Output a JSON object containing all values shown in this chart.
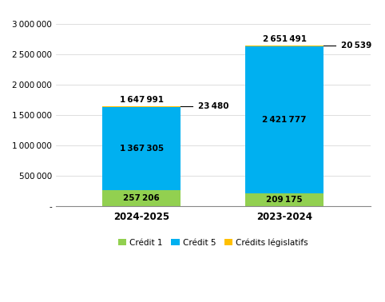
{
  "categories": [
    "2024-2025",
    "2023-2024"
  ],
  "credit1": [
    257206,
    209175
  ],
  "credit5": [
    1367305,
    2421777
  ],
  "credits_legislatifs": [
    23480,
    20539
  ],
  "colors": {
    "credit1": "#92D050",
    "credit5": "#00B0F0",
    "credits_legislatifs": "#FFC000"
  },
  "labels": {
    "credit1": "Crédit 1",
    "credit5": "Crédit 5",
    "credits_legislatifs": "Crédits législatifs"
  },
  "ylim": [
    0,
    3200000
  ],
  "yticks": [
    0,
    500000,
    1000000,
    1500000,
    2000000,
    2500000,
    3000000
  ],
  "background_color": "#ffffff",
  "bar_width": 0.55
}
